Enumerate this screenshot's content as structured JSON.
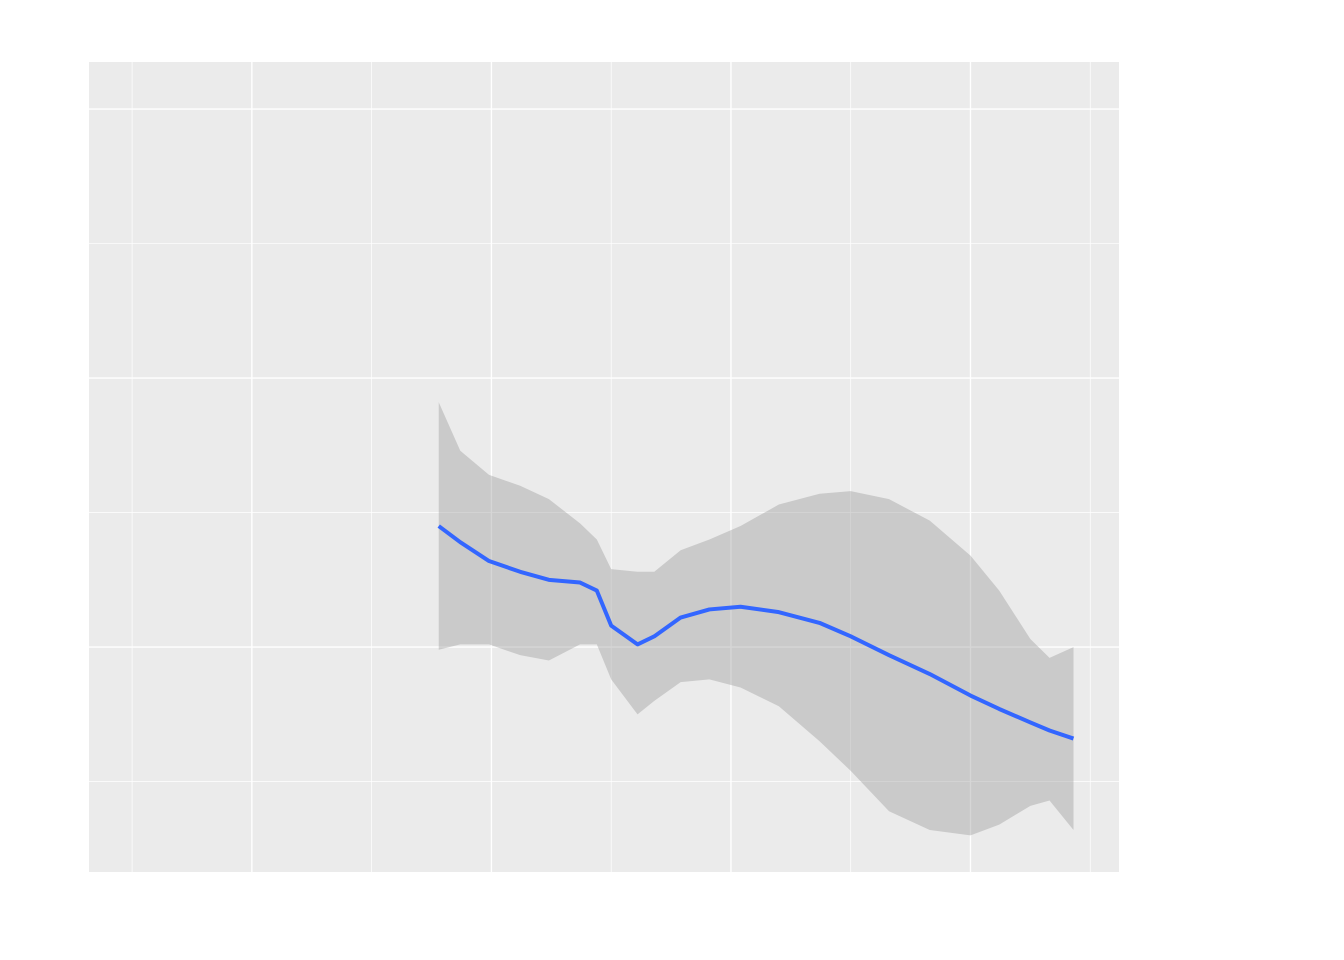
{
  "chart_data": {
    "type": "smooth",
    "x": [
      1.78,
      1.87,
      1.99,
      2.12,
      2.24,
      2.37,
      2.44,
      2.5,
      2.61,
      2.68,
      2.79,
      2.91,
      3.04,
      3.2,
      3.37,
      3.5,
      3.66,
      3.83,
      4.0,
      4.12,
      4.25,
      4.33,
      4.43
    ],
    "values": [
      1.45,
      1.39,
      1.32,
      1.28,
      1.25,
      1.24,
      1.21,
      1.08,
      1.01,
      1.04,
      1.11,
      1.14,
      1.15,
      1.13,
      1.09,
      1.04,
      0.97,
      0.9,
      0.82,
      0.77,
      0.72,
      0.69,
      0.66
    ],
    "upper": [
      1.91,
      1.73,
      1.64,
      1.6,
      1.55,
      1.46,
      1.4,
      1.29,
      1.28,
      1.28,
      1.36,
      1.4,
      1.45,
      1.53,
      1.57,
      1.58,
      1.55,
      1.47,
      1.34,
      1.21,
      1.03,
      0.96,
      1.0
    ],
    "lower": [
      0.99,
      1.01,
      1.01,
      0.97,
      0.95,
      1.01,
      1.01,
      0.88,
      0.75,
      0.8,
      0.87,
      0.88,
      0.85,
      0.78,
      0.65,
      0.54,
      0.39,
      0.32,
      0.3,
      0.34,
      0.41,
      0.43,
      0.32
    ],
    "color": "#3366ff",
    "ribbon_color": "#999999",
    "xlim": [
      0.32,
      4.62
    ],
    "ylim": [
      0.164,
      3.175
    ],
    "xticks": [
      1,
      2,
      3,
      4
    ],
    "xticks_minor": [
      0.5,
      1.5,
      2.5,
      3.5,
      4.5
    ],
    "yticks": [
      1,
      2,
      3
    ],
    "yticks_minor": [
      0.5,
      1.5,
      2.5
    ],
    "grid": true
  }
}
